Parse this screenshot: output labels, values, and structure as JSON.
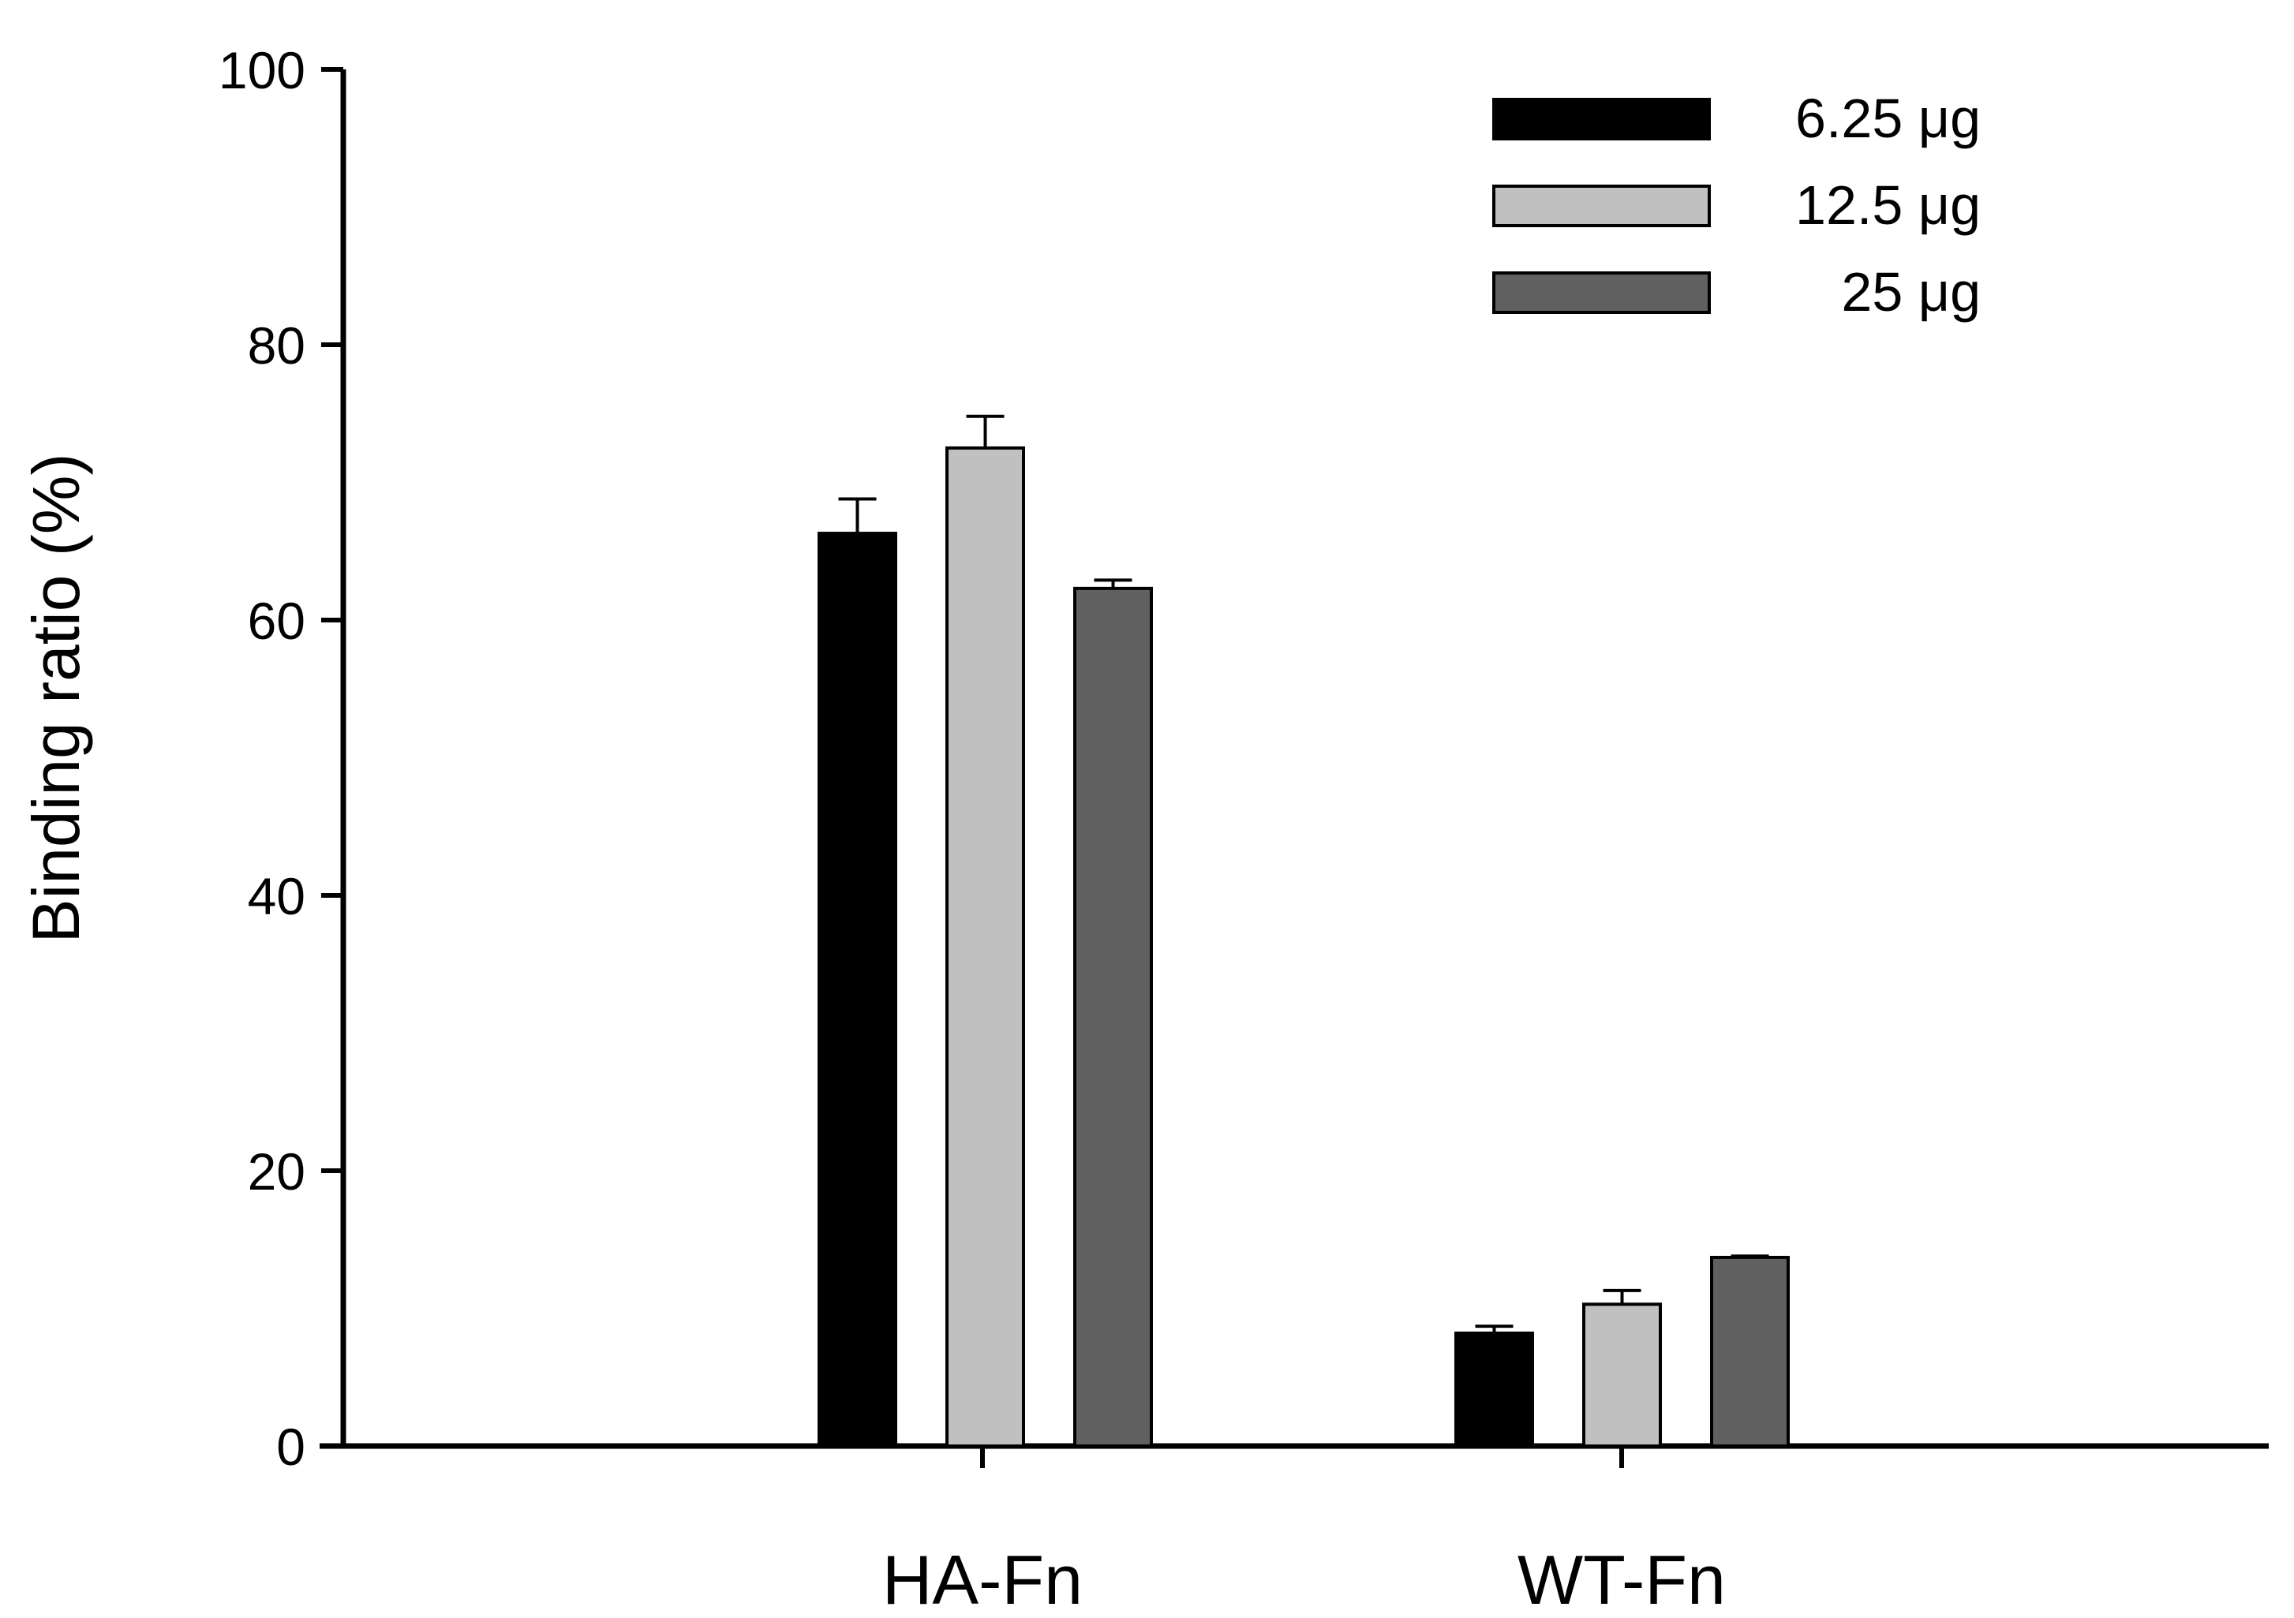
{
  "chart_data": {
    "type": "bar",
    "categories": [
      "HA-Fn",
      "WT-Fn"
    ],
    "series": [
      {
        "name": "6.25 μg",
        "color": "#000000",
        "values": [
          66.3,
          8.2
        ],
        "errors": [
          2.5,
          0.5
        ]
      },
      {
        "name": "12.5 μg",
        "color": "#c0c0c0",
        "values": [
          72.5,
          10.3
        ],
        "errors": [
          2.3,
          1.0
        ]
      },
      {
        "name": "25 μg",
        "color": "#606060",
        "values": [
          62.3,
          13.7
        ],
        "errors": [
          0.6,
          0.1
        ]
      }
    ],
    "title": "",
    "xlabel": "",
    "ylabel": "Binding ratio (%)",
    "ylim": [
      0,
      100
    ],
    "yticks": [
      0,
      20,
      40,
      60,
      80,
      100
    ],
    "grid": false,
    "legend_position": "top-right"
  }
}
